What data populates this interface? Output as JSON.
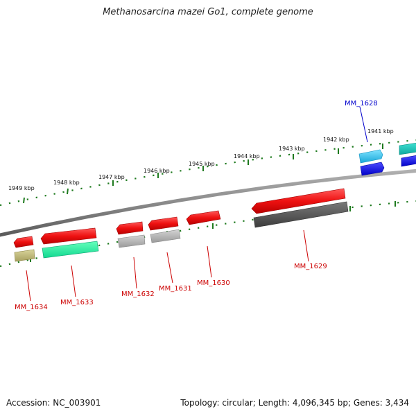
{
  "title": "Methanosarcina mazei Go1, complete genome",
  "accession": "Accession: NC_003901",
  "summary": "Topology: circular; Length: 4,096,345 bp; Genes: 3,434",
  "colors": {
    "backbone": "#8c8c8c",
    "tick": "#1e7a1e",
    "label_forward": "#0000cc",
    "label_reverse": "#cc0000"
  },
  "ticks": [
    {
      "label": "1941 kbp"
    },
    {
      "label": "1942 kbp"
    },
    {
      "label": "1943 kbp"
    },
    {
      "label": "1944 kbp"
    },
    {
      "label": "1945 kbp"
    },
    {
      "label": "1946 kbp"
    },
    {
      "label": "1947 kbp"
    },
    {
      "label": "1948 kbp"
    },
    {
      "label": "1949 kbp"
    }
  ],
  "genes": [
    {
      "name": "MM_1628",
      "strand": "forward",
      "color": "#22b8e8"
    },
    {
      "name": "MM_1629",
      "strand": "reverse",
      "color": "#ee1111"
    },
    {
      "name": "MM_1630",
      "strand": "reverse",
      "color": "#ee1111"
    },
    {
      "name": "MM_1631",
      "strand": "reverse",
      "color": "#ee1111"
    },
    {
      "name": "MM_1632",
      "strand": "reverse",
      "color": "#ee1111"
    },
    {
      "name": "MM_1633",
      "strand": "reverse",
      "color": "#ee1111"
    },
    {
      "name": "MM_1634",
      "strand": "reverse",
      "color": "#ee1111"
    }
  ]
}
